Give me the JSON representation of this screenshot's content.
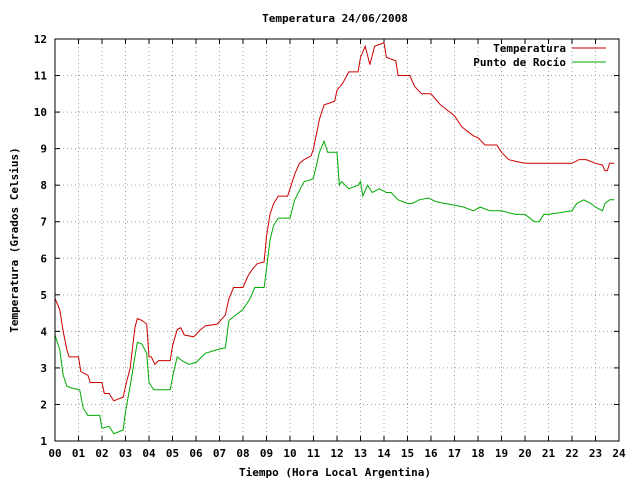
{
  "chart_data": {
    "type": "line",
    "title": "Temperatura 24/06/2008",
    "xlabel": "Tiempo (Hora Local Argentina)",
    "ylabel": "Temperatura (Grados Celsius)",
    "xlim": [
      0,
      24
    ],
    "ylim": [
      1,
      12
    ],
    "x_ticks": [
      "00",
      "01",
      "02",
      "03",
      "04",
      "05",
      "06",
      "07",
      "08",
      "09",
      "10",
      "11",
      "12",
      "13",
      "14",
      "15",
      "16",
      "17",
      "18",
      "19",
      "20",
      "21",
      "22",
      "23",
      "24"
    ],
    "y_ticks": [
      "1",
      "2",
      "3",
      "4",
      "5",
      "6",
      "7",
      "8",
      "9",
      "10",
      "11",
      "12"
    ],
    "grid": true,
    "legend_position": "top-right",
    "series": [
      {
        "name": "Temperatura",
        "color": "#cc0000",
        "points": [
          [
            0,
            4.9
          ],
          [
            0.2,
            4.6
          ],
          [
            0.35,
            4.0
          ],
          [
            0.5,
            3.5
          ],
          [
            0.6,
            3.3
          ],
          [
            1.0,
            3.3
          ],
          [
            1.1,
            2.9
          ],
          [
            1.4,
            2.8
          ],
          [
            1.5,
            2.6
          ],
          [
            2.0,
            2.6
          ],
          [
            2.1,
            2.3
          ],
          [
            2.3,
            2.3
          ],
          [
            2.5,
            2.1
          ],
          [
            2.9,
            2.2
          ],
          [
            3.0,
            2.5
          ],
          [
            3.2,
            3.0
          ],
          [
            3.4,
            4.1
          ],
          [
            3.5,
            4.35
          ],
          [
            3.7,
            4.3
          ],
          [
            3.9,
            4.2
          ],
          [
            4.0,
            3.3
          ],
          [
            4.1,
            3.3
          ],
          [
            4.25,
            3.1
          ],
          [
            4.4,
            3.2
          ],
          [
            4.9,
            3.2
          ],
          [
            5.0,
            3.6
          ],
          [
            5.2,
            4.05
          ],
          [
            5.35,
            4.1
          ],
          [
            5.5,
            3.9
          ],
          [
            5.9,
            3.85
          ],
          [
            6.2,
            4.05
          ],
          [
            6.4,
            4.15
          ],
          [
            6.9,
            4.2
          ],
          [
            7.25,
            4.45
          ],
          [
            7.4,
            4.9
          ],
          [
            7.6,
            5.2
          ],
          [
            8.0,
            5.2
          ],
          [
            8.2,
            5.5
          ],
          [
            8.4,
            5.7
          ],
          [
            8.6,
            5.85
          ],
          [
            8.9,
            5.9
          ],
          [
            9.0,
            6.6
          ],
          [
            9.15,
            7.2
          ],
          [
            9.3,
            7.5
          ],
          [
            9.5,
            7.7
          ],
          [
            9.9,
            7.7
          ],
          [
            10.2,
            8.3
          ],
          [
            10.4,
            8.6
          ],
          [
            10.6,
            8.7
          ],
          [
            10.9,
            8.8
          ],
          [
            11.0,
            9.0
          ],
          [
            11.25,
            9.8
          ],
          [
            11.45,
            10.2
          ],
          [
            11.7,
            10.25
          ],
          [
            11.9,
            10.3
          ],
          [
            12.0,
            10.6
          ],
          [
            12.25,
            10.8
          ],
          [
            12.5,
            11.1
          ],
          [
            12.9,
            11.1
          ],
          [
            13.0,
            11.5
          ],
          [
            13.2,
            11.8
          ],
          [
            13.4,
            11.3
          ],
          [
            13.6,
            11.8
          ],
          [
            14.0,
            11.9
          ],
          [
            14.1,
            11.5
          ],
          [
            14.5,
            11.4
          ],
          [
            14.6,
            11.0
          ],
          [
            15.1,
            11.0
          ],
          [
            15.3,
            10.7
          ],
          [
            15.6,
            10.5
          ],
          [
            16.0,
            10.5
          ],
          [
            16.4,
            10.2
          ],
          [
            16.8,
            10.0
          ],
          [
            17.0,
            9.9
          ],
          [
            17.3,
            9.6
          ],
          [
            17.6,
            9.45
          ],
          [
            17.8,
            9.35
          ],
          [
            18.0,
            9.3
          ],
          [
            18.3,
            9.1
          ],
          [
            18.8,
            9.1
          ],
          [
            19.0,
            8.9
          ],
          [
            19.3,
            8.7
          ],
          [
            19.6,
            8.65
          ],
          [
            20.0,
            8.6
          ],
          [
            20.6,
            8.6
          ],
          [
            21.0,
            8.6
          ],
          [
            21.5,
            8.6
          ],
          [
            22.0,
            8.6
          ],
          [
            22.3,
            8.7
          ],
          [
            22.6,
            8.7
          ],
          [
            23.0,
            8.6
          ],
          [
            23.3,
            8.55
          ],
          [
            23.4,
            8.4
          ],
          [
            23.5,
            8.4
          ],
          [
            23.6,
            8.6
          ],
          [
            23.8,
            8.6
          ]
        ]
      },
      {
        "name": "Punto de Rocío",
        "color": "#00aa00",
        "points": [
          [
            0,
            3.9
          ],
          [
            0.2,
            3.5
          ],
          [
            0.35,
            2.8
          ],
          [
            0.5,
            2.5
          ],
          [
            0.7,
            2.45
          ],
          [
            1.05,
            2.4
          ],
          [
            1.2,
            1.9
          ],
          [
            1.4,
            1.7
          ],
          [
            1.9,
            1.7
          ],
          [
            2.0,
            1.35
          ],
          [
            2.3,
            1.4
          ],
          [
            2.5,
            1.2
          ],
          [
            2.9,
            1.3
          ],
          [
            3.0,
            1.8
          ],
          [
            3.25,
            2.7
          ],
          [
            3.4,
            3.3
          ],
          [
            3.5,
            3.7
          ],
          [
            3.7,
            3.65
          ],
          [
            3.9,
            3.4
          ],
          [
            4.0,
            2.6
          ],
          [
            4.2,
            2.4
          ],
          [
            4.9,
            2.4
          ],
          [
            5.05,
            2.9
          ],
          [
            5.2,
            3.3
          ],
          [
            5.4,
            3.2
          ],
          [
            5.7,
            3.1
          ],
          [
            6.0,
            3.15
          ],
          [
            6.4,
            3.4
          ],
          [
            6.9,
            3.5
          ],
          [
            7.25,
            3.55
          ],
          [
            7.4,
            4.3
          ],
          [
            7.7,
            4.45
          ],
          [
            8.0,
            4.6
          ],
          [
            8.3,
            4.9
          ],
          [
            8.5,
            5.2
          ],
          [
            8.9,
            5.2
          ],
          [
            9.0,
            5.7
          ],
          [
            9.15,
            6.5
          ],
          [
            9.3,
            6.9
          ],
          [
            9.5,
            7.1
          ],
          [
            10.0,
            7.1
          ],
          [
            10.2,
            7.6
          ],
          [
            10.6,
            8.1
          ],
          [
            10.9,
            8.15
          ],
          [
            11.0,
            8.2
          ],
          [
            11.25,
            8.9
          ],
          [
            11.45,
            9.2
          ],
          [
            11.6,
            8.9
          ],
          [
            12.0,
            8.9
          ],
          [
            12.1,
            8.0
          ],
          [
            12.2,
            8.1
          ],
          [
            12.5,
            7.9
          ],
          [
            12.9,
            8.0
          ],
          [
            13.0,
            8.1
          ],
          [
            13.1,
            7.7
          ],
          [
            13.3,
            8.0
          ],
          [
            13.5,
            7.8
          ],
          [
            13.8,
            7.9
          ],
          [
            14.1,
            7.8
          ],
          [
            14.3,
            7.8
          ],
          [
            14.6,
            7.6
          ],
          [
            15.0,
            7.5
          ],
          [
            15.2,
            7.5
          ],
          [
            15.5,
            7.6
          ],
          [
            15.9,
            7.65
          ],
          [
            16.2,
            7.55
          ],
          [
            16.6,
            7.5
          ],
          [
            17.0,
            7.45
          ],
          [
            17.4,
            7.4
          ],
          [
            17.8,
            7.3
          ],
          [
            18.1,
            7.4
          ],
          [
            18.5,
            7.3
          ],
          [
            19.0,
            7.3
          ],
          [
            19.6,
            7.2
          ],
          [
            20.0,
            7.2
          ],
          [
            20.4,
            7.0
          ],
          [
            20.6,
            7.0
          ],
          [
            20.8,
            7.2
          ],
          [
            21.0,
            7.2
          ],
          [
            21.5,
            7.25
          ],
          [
            22.0,
            7.3
          ],
          [
            22.2,
            7.5
          ],
          [
            22.5,
            7.6
          ],
          [
            22.8,
            7.5
          ],
          [
            23.0,
            7.4
          ],
          [
            23.3,
            7.3
          ],
          [
            23.4,
            7.5
          ],
          [
            23.6,
            7.6
          ],
          [
            23.8,
            7.6
          ]
        ]
      }
    ]
  }
}
